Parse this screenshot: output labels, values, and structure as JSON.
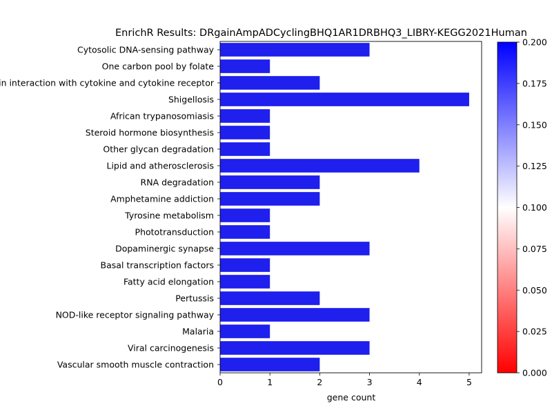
{
  "chart_data": {
    "type": "bar",
    "orientation": "horizontal",
    "title": "EnrichR Results: DRgainAmpADCyclingBHQ1AR1DRBHQ3_LIBRY-KEGG2021Human",
    "xlabel": "gene count",
    "ylabel": "",
    "xlim": [
      0,
      5.25
    ],
    "xticks": [
      0,
      1,
      2,
      3,
      4,
      5
    ],
    "grid": false,
    "bar_color": "#1f1fee",
    "categories": [
      "Cytosolic DNA-sensing pathway",
      "One carbon pool by folate",
      "Viral protein interaction with cytokine and cytokine receptor",
      "Shigellosis",
      "African trypanosomiasis",
      "Steroid hormone biosynthesis",
      "Other glycan degradation",
      "Lipid and atherosclerosis",
      "RNA degradation",
      "Amphetamine addiction",
      "Tyrosine metabolism",
      "Phototransduction",
      "Dopaminergic synapse",
      "Basal transcription factors",
      "Fatty acid elongation",
      "Pertussis",
      "NOD-like receptor signaling pathway",
      "Malaria",
      "Viral carcinogenesis",
      "Vascular smooth muscle contraction"
    ],
    "values": [
      3,
      1,
      2,
      5,
      1,
      1,
      1,
      4,
      2,
      2,
      1,
      1,
      3,
      1,
      1,
      2,
      3,
      1,
      3,
      2
    ],
    "colorbar": {
      "colormap": "bwr_r",
      "colors": [
        "#ff0000",
        "#ffffff",
        "#0000ff"
      ],
      "range": [
        0,
        0.2
      ],
      "ticks": [
        "0.000",
        "0.025",
        "0.050",
        "0.075",
        "0.100",
        "0.125",
        "0.150",
        "0.175",
        "0.200"
      ]
    }
  }
}
